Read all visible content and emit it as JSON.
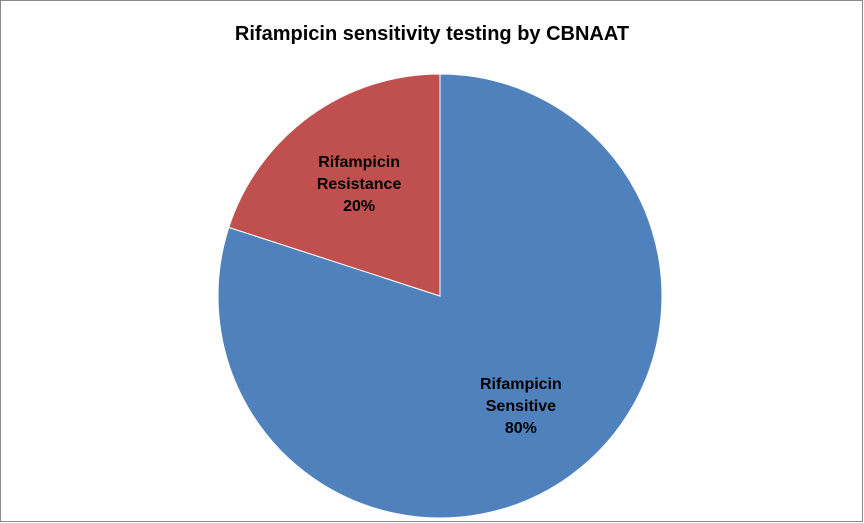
{
  "chart_data": {
    "type": "pie",
    "title": "Rifampicin sensitivity testing by CBNAAT",
    "categories": [
      "Rifampicin Sensitive",
      "Rifampicin Resistance"
    ],
    "values": [
      80,
      20
    ],
    "value_labels": [
      "80%",
      "20%"
    ],
    "colors": [
      "#4f81bd",
      "#c0504d"
    ]
  }
}
